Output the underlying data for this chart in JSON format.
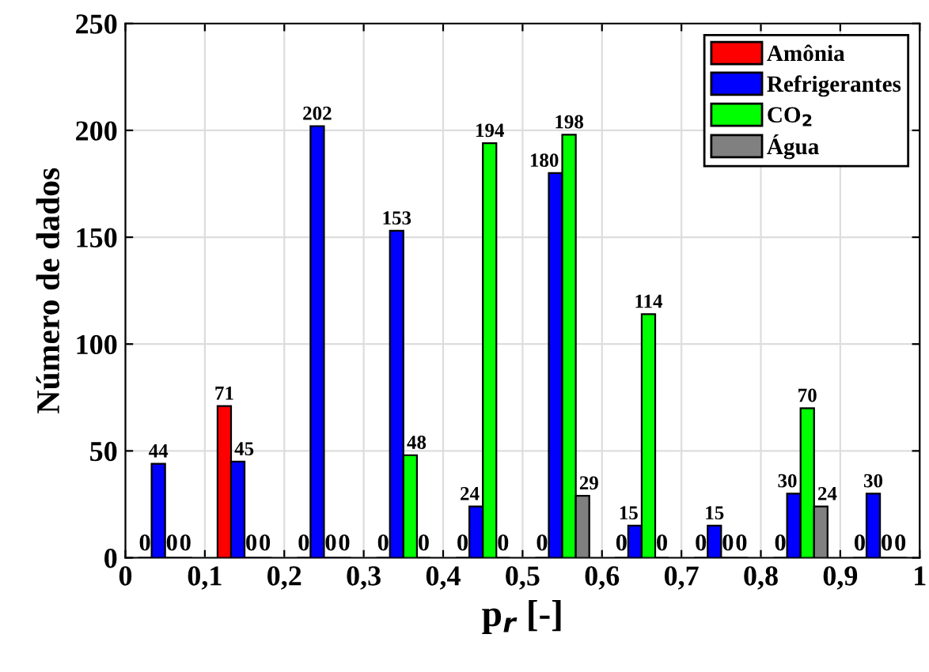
{
  "chart_data": {
    "type": "bar",
    "xlabel": "p$_{r}$ [-]",
    "ylabel": "Número de dados",
    "x": [
      0.05,
      0.15,
      0.25,
      0.35,
      0.45,
      0.55,
      0.65,
      0.75,
      0.85,
      0.95
    ],
    "series": [
      {
        "name": "Amônia",
        "color": "#ff0000",
        "values": [
          0,
          71,
          0,
          0,
          0,
          0,
          0,
          0,
          0,
          0
        ]
      },
      {
        "name": "Refrigerantes",
        "color": "#0000ff",
        "values": [
          44,
          45,
          202,
          153,
          24,
          180,
          15,
          15,
          30,
          30
        ]
      },
      {
        "name": "CO$_{2}$",
        "color": "#00ff00",
        "values": [
          0,
          0,
          0,
          48,
          194,
          198,
          114,
          0,
          70,
          0
        ]
      },
      {
        "name": "Água",
        "color": "#808080",
        "values": [
          0,
          0,
          0,
          0,
          0,
          29,
          0,
          0,
          24,
          0
        ]
      }
    ],
    "xlim": [
      0,
      1
    ],
    "ylim": [
      0,
      250
    ],
    "xticks": [
      0,
      {
        "value": 0.1,
        "label": "0,1"
      },
      {
        "value": 0.2,
        "label": "0,2"
      },
      {
        "value": 0.3,
        "label": "0,3"
      },
      {
        "value": 0.4,
        "label": "0,4"
      },
      {
        "value": 0.5,
        "label": "0,5"
      },
      {
        "value": 0.6,
        "label": "0,6"
      },
      {
        "value": 0.7,
        "label": "0,7"
      },
      {
        "value": 0.8,
        "label": "0,8"
      },
      {
        "value": 0.9,
        "label": "0,9"
      },
      1
    ],
    "yticks": [
      0,
      50,
      100,
      150,
      200,
      250
    ],
    "grid": true,
    "legend": "top right",
    "data_labels": true
  }
}
